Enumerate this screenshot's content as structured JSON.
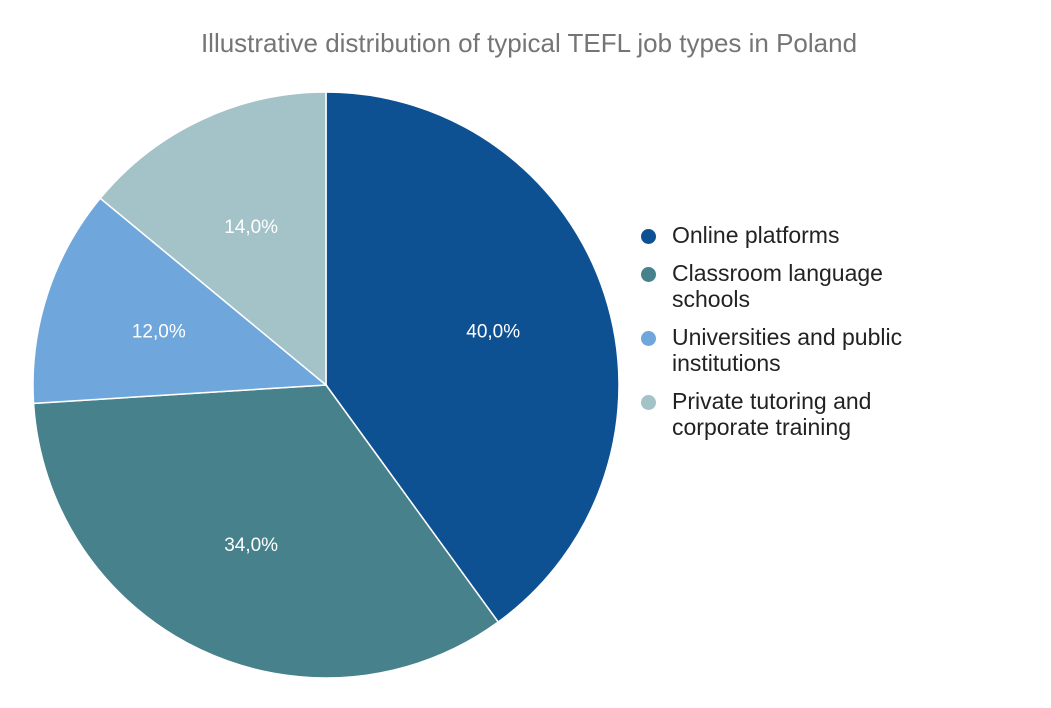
{
  "chart_data": {
    "type": "pie",
    "title": "Illustrative distribution of typical TEFL job types in Poland",
    "categories": [
      "Online platforms",
      "Classroom language schools",
      "Universities and public institutions",
      "Private tutoring and corporate training"
    ],
    "values": [
      40.0,
      34.0,
      12.0,
      14.0
    ],
    "labels": [
      "40,0%",
      "34,0%",
      "12,0%",
      "14,0%"
    ],
    "colors": [
      "#0D5193",
      "#47818C",
      "#6FA7DC",
      "#A3C3C8"
    ],
    "start_angle": "12 o'clock, clockwise",
    "legend_position": "right"
  },
  "title": "Illustrative distribution of typical TEFL job types in Poland",
  "legend": [
    {
      "label": "Online platforms",
      "color": "#0D5193"
    },
    {
      "label": "Classroom language schools",
      "color": "#47818C"
    },
    {
      "label": "Universities and public institutions",
      "color": "#6FA7DC"
    },
    {
      "label": "Private tutoring and corporate training",
      "color": "#A3C3C8"
    }
  ]
}
